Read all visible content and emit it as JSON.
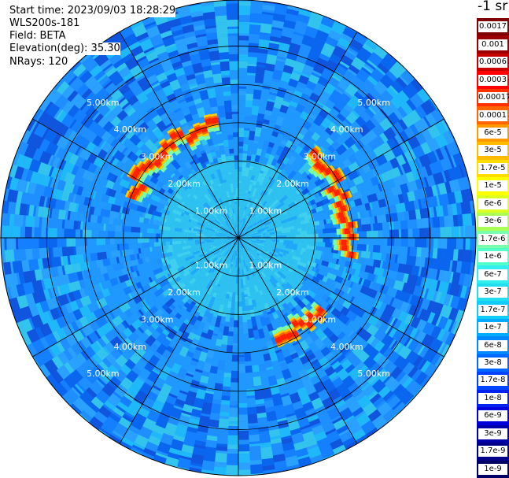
{
  "info": {
    "start_time": "Start time: 2023/09/03 18:28:29",
    "station": "WLS200s-181",
    "field": "Field: BETA",
    "elevation": "Elevation(deg): 35.30",
    "nrays": "NRays: 120"
  },
  "colorbar": {
    "unit": "-1 sr",
    "labels": [
      "0.0017",
      "0.001",
      "0.0006",
      "0.0003",
      "0.00017",
      "0.0001",
      "6e-5",
      "3e-5",
      "1.7e-5",
      "1e-5",
      "6e-6",
      "3e-6",
      "1.7e-6",
      "1e-6",
      "6e-7",
      "3e-7",
      "1.7e-7",
      "1e-7",
      "6e-8",
      "3e-8",
      "1.7e-8",
      "1e-8",
      "6e-9",
      "3e-9",
      "1.7e-9",
      "1e-9"
    ],
    "colors": [
      "#7f0000",
      "#9a0000",
      "#c80000",
      "#ff0000",
      "#ff3000",
      "#ff6600",
      "#ff9900",
      "#ffbb00",
      "#ffdd00",
      "#ffff00",
      "#ddff22",
      "#aaff55",
      "#77ffaa",
      "#55ffcc",
      "#33eeee",
      "#22ddee",
      "#11ccff",
      "#00aaff",
      "#0088ff",
      "#0066ff",
      "#0044ff",
      "#0022ee",
      "#0000dd",
      "#0000aa",
      "#000088",
      "#000066"
    ]
  },
  "chart_data": {
    "type": "polar_ppi",
    "field": "BETA",
    "unit": "-1 sr",
    "elevation_deg": 35.3,
    "nrays": 120,
    "range_rings_km": [
      1,
      2,
      3,
      4,
      5
    ],
    "ring_labels": [
      "1.00km",
      "2.00km",
      "3.00km",
      "4.00km",
      "5.00km"
    ],
    "max_range_km": 6.2,
    "spokes_deg": [
      0,
      30,
      60,
      90,
      120,
      150,
      180,
      210,
      240,
      270,
      300,
      330
    ],
    "background_value": 3e-08,
    "inner_value": 6e-08,
    "features": [
      {
        "azimuth_start_deg": 290,
        "azimuth_end_deg": 350,
        "range_km": 3.0,
        "peak_value": 6e-05
      },
      {
        "azimuth_start_deg": 40,
        "azimuth_end_deg": 100,
        "range_km": 2.9,
        "peak_value": 6e-05
      },
      {
        "azimuth_start_deg": 130,
        "azimuth_end_deg": 160,
        "range_km": 2.8,
        "peak_value": 1e-05
      }
    ]
  }
}
